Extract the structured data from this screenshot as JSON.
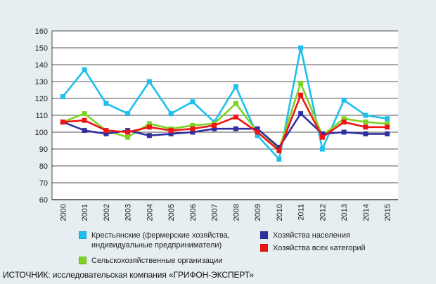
{
  "colors": {
    "background": "#e6eef1",
    "plot_background": "#ffffff",
    "grid": "#1a1a1a"
  },
  "chart_data": {
    "type": "line",
    "title": "",
    "xlabel": "",
    "ylabel": "",
    "ylim": [
      60,
      160
    ],
    "y_ticks": [
      60,
      70,
      80,
      90,
      100,
      110,
      120,
      130,
      140,
      150,
      160
    ],
    "grid": true,
    "legend_position": "bottom",
    "categories": [
      "2000",
      "2001",
      "2002",
      "2003",
      "2004",
      "2005",
      "2006",
      "2007",
      "2008",
      "2009",
      "2010",
      "2011",
      "2012",
      "2013",
      "2014",
      "2015"
    ],
    "series": [
      {
        "name": "Крестьянские (фермерские хозяйства,\nиндивидуальные предприниматели)",
        "color": "#1cbfee",
        "values": [
          121,
          137,
          117,
          111,
          130,
          111,
          118,
          106,
          127,
          98,
          84,
          150,
          90,
          119,
          110,
          108
        ]
      },
      {
        "name": "Сельскохозяйственные организации",
        "color": "#7ed321",
        "values": [
          106,
          111,
          101,
          97,
          105,
          102,
          104,
          105,
          117,
          100,
          90,
          129,
          98,
          108,
          106,
          105
        ]
      },
      {
        "name": "Хозяйства населения",
        "color": "#2f2fa0",
        "values": [
          106,
          101,
          99,
          101,
          98,
          99,
          100,
          102,
          102,
          102,
          91,
          111,
          99,
          100,
          99,
          99
        ]
      },
      {
        "name": "Хозяйства всех категорий",
        "color": "#f01414",
        "values": [
          106,
          107,
          101,
          100,
          103,
          101,
          102,
          104,
          109,
          100,
          89,
          122,
          97,
          106,
          103,
          103
        ]
      }
    ]
  },
  "source": {
    "prefix": "ИСТОЧНИК:",
    "text": " исследовательская компания «ГРИФОН-ЭКСПЕРТ»"
  }
}
